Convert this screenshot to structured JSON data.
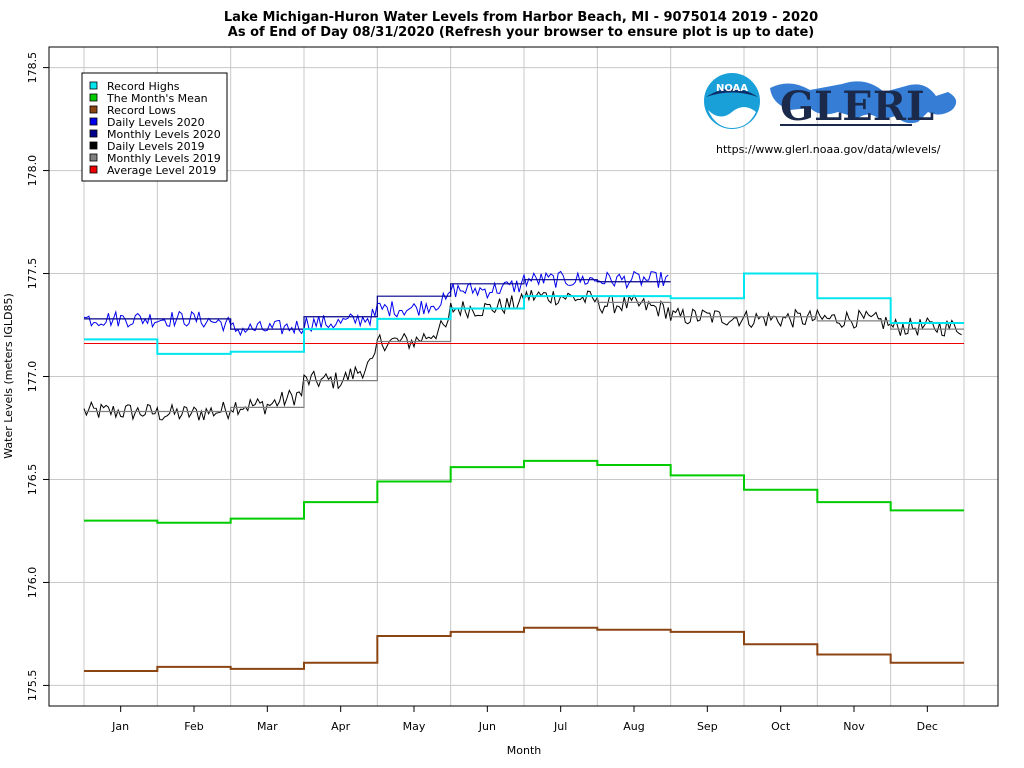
{
  "chart_data": {
    "type": "line",
    "title_line1": "Lake Michigan-Huron Water Levels from Harbor Beach, MI - 9075014 2019 - 2020",
    "title_line2": "As of End of Day 08/31/2020 (Refresh your browser to ensure plot is up to date)",
    "xlabel": "Month",
    "ylabel": "Water Levels (meters IGLD85)",
    "ylim": [
      175.4,
      178.6
    ],
    "y_ticks": [
      175.5,
      176.0,
      176.5,
      177.0,
      177.5,
      178.0,
      178.5
    ],
    "y_tick_labels": [
      "175.5",
      "176.0",
      "176.5",
      "177.0",
      "177.5",
      "178.0",
      "178.5"
    ],
    "months": [
      "Jan",
      "Feb",
      "Mar",
      "Apr",
      "May",
      "Jun",
      "Jul",
      "Aug",
      "Sep",
      "Oct",
      "Nov",
      "Dec"
    ],
    "grid": true,
    "legend_position": "top-left",
    "series": [
      {
        "name": "Record Highs",
        "color": "#00e5ee",
        "step": true,
        "values": [
          177.18,
          177.11,
          177.12,
          177.23,
          177.28,
          177.33,
          177.39,
          177.39,
          177.38,
          177.5,
          177.38,
          177.26
        ]
      },
      {
        "name": "The Month's Mean",
        "color": "#00cc00",
        "step": true,
        "values": [
          176.3,
          176.29,
          176.31,
          176.39,
          176.49,
          176.56,
          176.59,
          176.57,
          176.52,
          176.45,
          176.39,
          176.35
        ]
      },
      {
        "name": "Record Lows",
        "color": "#8b4513",
        "step": true,
        "values": [
          175.57,
          175.59,
          175.58,
          175.61,
          175.74,
          175.76,
          175.78,
          175.77,
          175.76,
          175.7,
          175.65,
          175.61
        ]
      },
      {
        "name": "Daily Levels 2020",
        "color": "#0000ee",
        "daily": true,
        "months_covered": 8,
        "base": [
          177.28,
          177.28,
          177.23,
          177.26,
          177.33,
          177.42,
          177.47,
          177.47
        ],
        "noise": 0.04
      },
      {
        "name": "Monthly Levels 2020",
        "color": "#00008b",
        "step": true,
        "values": [
          177.28,
          177.28,
          177.23,
          177.29,
          177.39,
          177.45,
          177.47,
          177.46
        ]
      },
      {
        "name": "Daily Levels 2019",
        "color": "#000000",
        "daily": true,
        "months_covered": 12,
        "base": [
          176.83,
          176.82,
          176.86,
          176.98,
          177.17,
          177.33,
          177.39,
          177.35,
          177.29,
          177.28,
          177.28,
          177.24
        ],
        "noise": 0.045
      },
      {
        "name": "Monthly Levels 2019",
        "color": "#808080",
        "step": true,
        "values": [
          176.83,
          176.83,
          176.85,
          176.98,
          177.17,
          177.33,
          177.39,
          177.36,
          177.29,
          177.29,
          177.27,
          177.23
        ]
      },
      {
        "name": "Average Level 2019",
        "color": "#ee0000",
        "flat": true,
        "value": 177.16
      }
    ]
  },
  "logo": {
    "noaa_text": "NOAA",
    "glerl_text": "GLERL",
    "url": "https://www.glerl.noaa.gov/data/wlevels/"
  }
}
